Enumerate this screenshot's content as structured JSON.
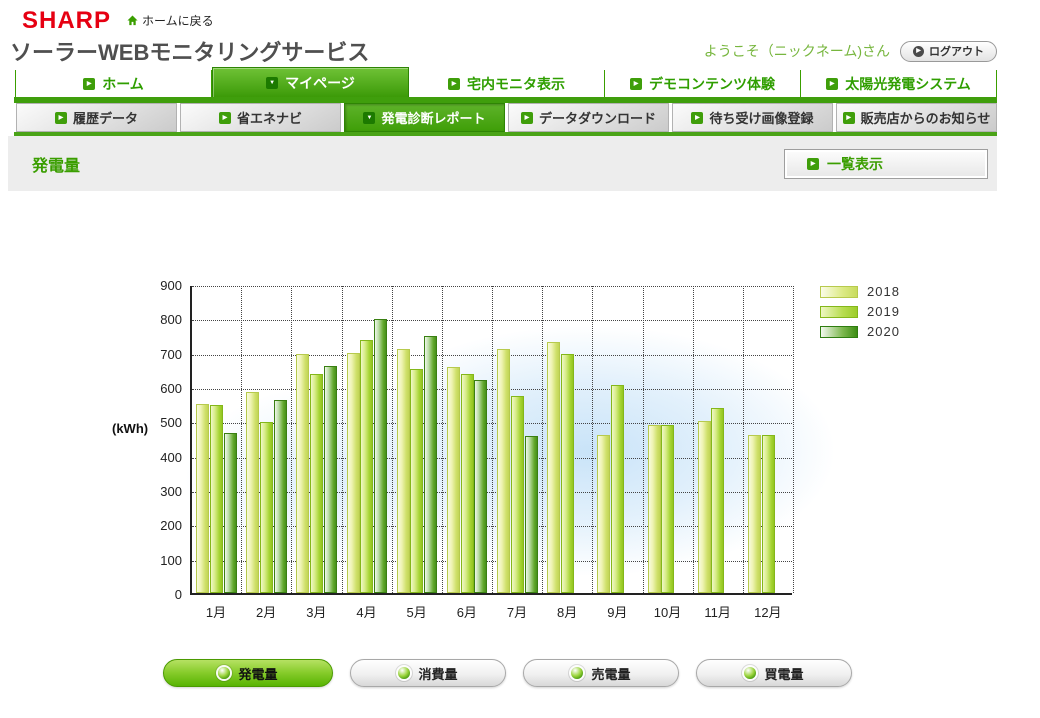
{
  "header": {
    "logo": "SHARP",
    "back_home": "ホームに戻る",
    "service_title": "ソーラーWEBモニタリングサービス",
    "welcome": "ようこそ（ニックネーム)さん",
    "logout_label": "ログアウト"
  },
  "main_nav": [
    {
      "label": "ホーム",
      "active": false
    },
    {
      "label": "マイページ",
      "active": true
    },
    {
      "label": "宅内モニタ表示",
      "active": false
    },
    {
      "label": "デモコンテンツ体験",
      "active": false
    },
    {
      "label": "太陽光発電システム",
      "active": false
    }
  ],
  "sub_nav": [
    {
      "label": "履歴データ",
      "active": false
    },
    {
      "label": "省エネナビ",
      "active": false
    },
    {
      "label": "発電診断レポート",
      "active": true
    },
    {
      "label": "データダウンロード",
      "active": false
    },
    {
      "label": "待ち受け画像登録",
      "active": false
    },
    {
      "label": "販売店からのお知らせ",
      "active": false
    }
  ],
  "page": {
    "section_title": "発電量",
    "list_view_button": "一覧表示"
  },
  "chart_data": {
    "type": "bar",
    "title": "",
    "ylabel": "(kWh)",
    "ylim": [
      0,
      900
    ],
    "ytick_step": 100,
    "grid": true,
    "legend_position": "top-right",
    "categories": [
      "1月",
      "2月",
      "3月",
      "4月",
      "5月",
      "6月",
      "7月",
      "8月",
      "9月",
      "10月",
      "11月",
      "12月"
    ],
    "series": [
      {
        "name": "2018",
        "values": [
          550,
          585,
          695,
          700,
          712,
          657,
          710,
          730,
          460,
          490,
          500,
          460
        ]
      },
      {
        "name": "2019",
        "values": [
          548,
          497,
          638,
          738,
          652,
          637,
          575,
          695,
          605,
          490,
          540,
          460
        ]
      },
      {
        "name": "2020",
        "values": [
          466,
          562,
          662,
          797,
          750,
          620,
          458,
          null,
          null,
          null,
          null,
          null
        ]
      }
    ]
  },
  "bottom_buttons": [
    {
      "label": "発電量",
      "active": true
    },
    {
      "label": "消費量",
      "active": false
    },
    {
      "label": "売電量",
      "active": false
    },
    {
      "label": "買電量",
      "active": false
    }
  ],
  "icons": {
    "arrow_right": "▶",
    "arrow_down": "▼"
  },
  "colors": {
    "brand_red": "#e60012",
    "accent_green": "#3a9e00",
    "series_2018": "#cfe06a",
    "series_2019": "#a6d433",
    "series_2020": "#46901a"
  }
}
